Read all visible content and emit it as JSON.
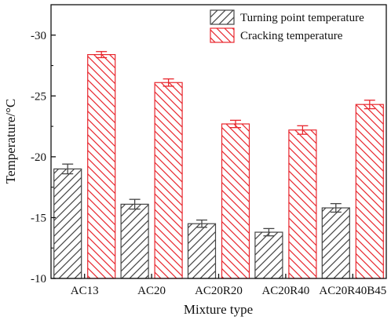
{
  "chart_data": {
    "type": "bar",
    "xlabel": "Mixture type",
    "ylabel": "Temperature/°C",
    "categories": [
      "AC13",
      "AC20",
      "AC20R20",
      "AC20R40",
      "AC20R40B45"
    ],
    "yticks": [
      -30,
      -25,
      -20,
      -15,
      -10
    ],
    "ylim": [
      -10,
      -32.5
    ],
    "axis_note": "y axis is inverted: -10 at the bottom, more negative upward",
    "grid": false,
    "legend_position": "top-right",
    "series": [
      {
        "name": "Turning point temperature",
        "values": [
          -19.0,
          -16.1,
          -14.5,
          -13.8,
          -15.8
        ],
        "errors": [
          0.4,
          0.4,
          0.3,
          0.3,
          0.35
        ],
        "color": "#444444",
        "hatch": "forward-slash"
      },
      {
        "name": "Cracking temperature",
        "values": [
          -28.4,
          -26.1,
          -22.7,
          -22.2,
          -24.3
        ],
        "errors": [
          0.25,
          0.3,
          0.3,
          0.35,
          0.35
        ],
        "color": "#e8262d",
        "hatch": "back-slash"
      }
    ]
  }
}
